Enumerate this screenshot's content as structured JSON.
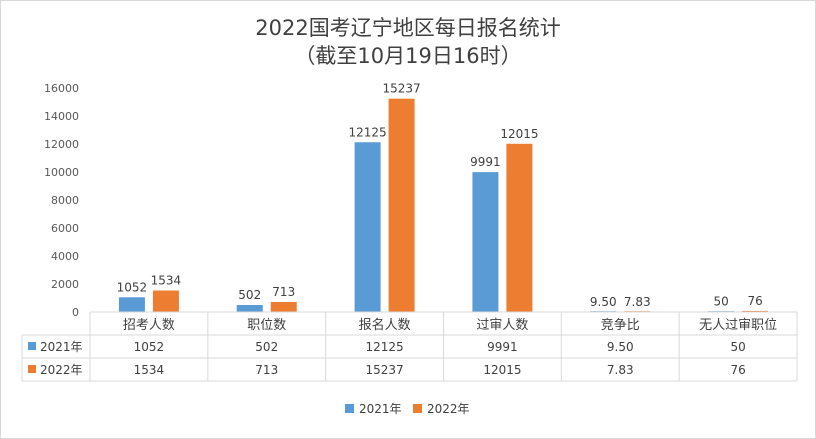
{
  "chart_data": {
    "type": "bar",
    "title": "2022国考辽宁地区每日报名统计",
    "subtitle": "（截至10月19日16时）",
    "categories": [
      "招考人数",
      "职位数",
      "报名人数",
      "过审人数",
      "竞争比",
      "无人过审职位"
    ],
    "series": [
      {
        "name": "2021年",
        "values": [
          1052,
          502,
          12125,
          9991,
          9.5,
          50
        ],
        "labels": [
          "1052",
          "502",
          "12125",
          "9991",
          "9.50",
          "50"
        ],
        "color": "#5b9bd5"
      },
      {
        "name": "2022年",
        "values": [
          1534,
          713,
          15237,
          12015,
          7.83,
          76
        ],
        "labels": [
          "1534",
          "713",
          "15237",
          "12015",
          "7.83",
          "76"
        ],
        "color": "#ed7d31"
      }
    ],
    "ylim": [
      0,
      16000
    ],
    "yticks": [
      0,
      2000,
      4000,
      6000,
      8000,
      10000,
      12000,
      14000,
      16000
    ],
    "grid": false,
    "data_table": true,
    "legend_position": "bottom"
  }
}
